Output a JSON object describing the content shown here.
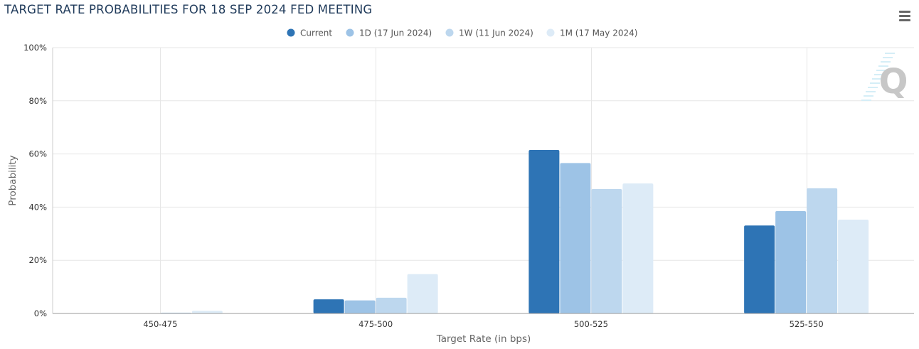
{
  "chart_title": "TARGET RATE PROBABILITIES FOR 18 SEP 2024 FED MEETING",
  "menu": {
    "icon": "hamburger-menu-icon"
  },
  "watermark": {
    "icon": "quikstrike-logo-icon",
    "letter": "Q"
  },
  "chart_data": {
    "type": "bar",
    "title": "TARGET RATE PROBABILITIES FOR 18 SEP 2024 FED MEETING",
    "xlabel": "Target Rate (in bps)",
    "ylabel": "Probability",
    "categories": [
      "450-475",
      "475-500",
      "500-525",
      "525-550"
    ],
    "ylim": [
      0,
      100
    ],
    "yticks": [
      0,
      20,
      40,
      60,
      80,
      100
    ],
    "ytick_labels": [
      "0%",
      "20%",
      "40%",
      "60%",
      "80%",
      "100%"
    ],
    "grid": true,
    "legend_position": "top-center",
    "series": [
      {
        "name": "Current",
        "color": "#2e74b5",
        "values": [
          0.0,
          5.3,
          61.5,
          33.1
        ]
      },
      {
        "name": "1D (17 Jun 2024)",
        "color": "#9dc3e6",
        "values": [
          0.0,
          4.9,
          56.6,
          38.5
        ]
      },
      {
        "name": "1W (11 Jun 2024)",
        "color": "#bdd7ee",
        "values": [
          0.3,
          5.9,
          46.8,
          47.1
        ]
      },
      {
        "name": "1M (17 May 2024)",
        "color": "#ddebf7",
        "values": [
          1.0,
          14.8,
          48.9,
          35.3
        ]
      }
    ]
  }
}
